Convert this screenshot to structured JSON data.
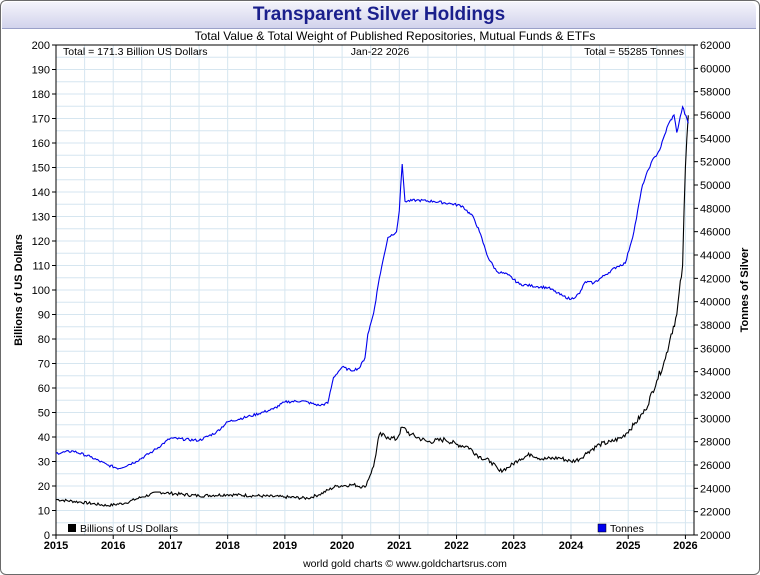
{
  "header": {
    "title": "Transparent Silver Holdings"
  },
  "footer": {
    "credit": "world gold charts © www.goldchartsrus.com"
  },
  "colors": {
    "value_series": "#000000",
    "tonnes_series": "#0000ee",
    "title_text": "#1a1f8c",
    "grid": "#d6e6f0"
  },
  "chart_data": {
    "type": "line",
    "title": "Total Value & Total Weight of Published Repositories, Mutual Funds & ETFs",
    "date_label": "Jan-22  2026",
    "total_value_label": "Total = 171.3 Billion US Dollars",
    "total_weight_label": "Total = 55285 Tonnes",
    "xlabel": "",
    "ylabel_left": "Billions of US Dollars",
    "ylabel_right": "Tonnes of Silver",
    "xlim": [
      2015,
      2026.15
    ],
    "ylim_left": [
      0,
      200
    ],
    "ylim_right": [
      20000,
      62000
    ],
    "x_ticks": [
      "2015",
      "2016",
      "2017",
      "2018",
      "2019",
      "2020",
      "2021",
      "2022",
      "2023",
      "2024",
      "2025",
      "2026"
    ],
    "y_ticks_left": [
      "0",
      "10",
      "20",
      "30",
      "40",
      "50",
      "60",
      "70",
      "80",
      "90",
      "100",
      "110",
      "120",
      "130",
      "140",
      "150",
      "160",
      "170",
      "180",
      "190",
      "200"
    ],
    "y_ticks_right": [
      "20000",
      "22000",
      "24000",
      "26000",
      "28000",
      "30000",
      "32000",
      "34000",
      "36000",
      "38000",
      "40000",
      "42000",
      "44000",
      "46000",
      "48000",
      "50000",
      "52000",
      "54000",
      "56000",
      "58000",
      "60000",
      "62000"
    ],
    "series": [
      {
        "name": "Billions of US Dollars",
        "axis": "left",
        "x": [
          2015.0,
          2015.4,
          2015.9,
          2016.2,
          2016.5,
          2016.8,
          2017.0,
          2017.5,
          2018.0,
          2018.5,
          2019.0,
          2019.4,
          2019.6,
          2019.9,
          2020.2,
          2020.4,
          2020.55,
          2020.65,
          2020.8,
          2020.95,
          2021.05,
          2021.2,
          2021.5,
          2021.8,
          2022.0,
          2022.2,
          2022.4,
          2022.6,
          2022.75,
          2022.9,
          2023.1,
          2023.3,
          2023.5,
          2023.8,
          2024.0,
          2024.15,
          2024.3,
          2024.5,
          2024.7,
          2024.9,
          2025.1,
          2025.3,
          2025.5,
          2025.65,
          2025.75,
          2025.85,
          2025.95,
          2026.0,
          2026.05
        ],
        "values": [
          14.5,
          13.5,
          12.0,
          13.0,
          15.5,
          17.5,
          17.0,
          16.0,
          16.5,
          16.0,
          15.5,
          15.0,
          16.5,
          20.0,
          20.5,
          19.5,
          28.0,
          41.0,
          40.0,
          39.0,
          44.0,
          41.0,
          38.0,
          39.0,
          37.0,
          36.0,
          32.0,
          30.0,
          26.0,
          27.5,
          31.0,
          33.0,
          31.0,
          31.5,
          30.0,
          31.0,
          34.0,
          37.0,
          38.0,
          40.0,
          45.0,
          51.0,
          63.0,
          72.0,
          82.0,
          90.0,
          110.0,
          150.0,
          171.3
        ]
      },
      {
        "name": "Tonnes",
        "axis": "right",
        "x": [
          2015.0,
          2015.3,
          2015.6,
          2015.9,
          2016.1,
          2016.4,
          2016.7,
          2017.0,
          2017.5,
          2017.8,
          2018.0,
          2018.4,
          2018.8,
          2019.0,
          2019.3,
          2019.6,
          2019.75,
          2019.85,
          2020.0,
          2020.15,
          2020.3,
          2020.4,
          2020.45,
          2020.55,
          2020.65,
          2020.8,
          2020.95,
          2021.0,
          2021.05,
          2021.1,
          2021.3,
          2021.6,
          2021.9,
          2022.1,
          2022.3,
          2022.4,
          2022.55,
          2022.7,
          2022.9,
          2023.1,
          2023.4,
          2023.6,
          2023.85,
          2024.0,
          2024.15,
          2024.25,
          2024.4,
          2024.6,
          2024.8,
          2024.95,
          2025.1,
          2025.25,
          2025.4,
          2025.55,
          2025.7,
          2025.8,
          2025.85,
          2025.95,
          2026.05
        ],
        "values": [
          27000,
          27200,
          26700,
          26000,
          25700,
          26300,
          27200,
          28300,
          28100,
          28800,
          29700,
          30200,
          30800,
          31400,
          31500,
          31100,
          31300,
          33500,
          34400,
          34100,
          34300,
          35200,
          37200,
          39000,
          42000,
          45500,
          46000,
          47800,
          51800,
          48600,
          48700,
          48600,
          48400,
          48200,
          47200,
          46000,
          43800,
          42600,
          42300,
          41500,
          41300,
          41200,
          40500,
          40200,
          40700,
          41700,
          41600,
          42300,
          43000,
          43300,
          46000,
          50000,
          51900,
          53000,
          55200,
          56000,
          54500,
          56700,
          55285
        ]
      }
    ]
  }
}
